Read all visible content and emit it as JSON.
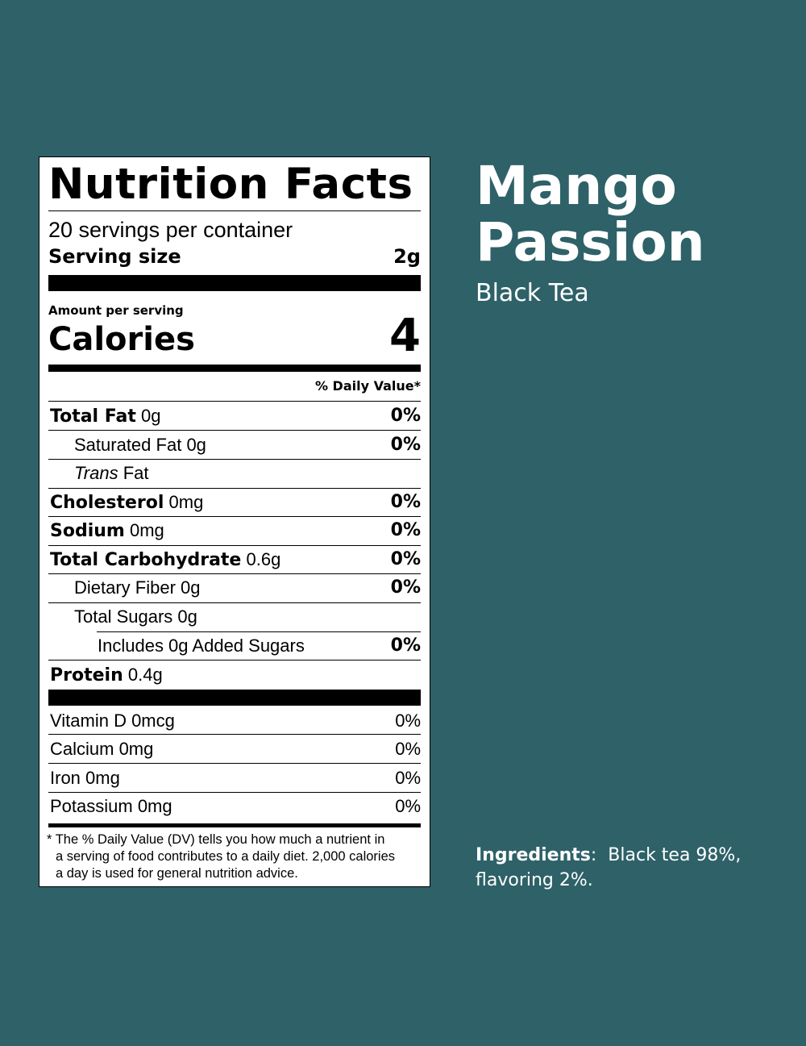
{
  "label": {
    "title": "Nutrition Facts",
    "servings": "20 servings per container",
    "serving_size_label": "Serving size",
    "serving_size_value": "2g",
    "amount_per_serving": "Amount per serving",
    "calories_label": "Calories",
    "calories_value": "4",
    "daily_value_header": "% Daily Value*",
    "nutrients": [
      {
        "name": "Total Fat",
        "amount": "0g",
        "pct": "0%"
      },
      {
        "name": "Saturated Fat",
        "amount": "0g",
        "pct": "0%"
      },
      {
        "name_italic": "Trans",
        "name_rest": "Fat"
      },
      {
        "name": "Cholesterol",
        "amount": "0mg",
        "pct": "0%"
      },
      {
        "name": "Sodium",
        "amount": "0mg",
        "pct": "0%"
      },
      {
        "name": "Total Carbohydrate",
        "amount": "0.6g",
        "pct": "0%"
      },
      {
        "name": "Dietary Fiber",
        "amount": "0g",
        "pct": "0%"
      },
      {
        "name": "Total Sugars",
        "amount": "0g"
      },
      {
        "name": "Includes 0g Added Sugars",
        "pct": "0%"
      },
      {
        "name": "Protein",
        "amount": "0.4g"
      }
    ],
    "vitamins": [
      {
        "text": "Vitamin D 0mcg",
        "pct": "0%"
      },
      {
        "text": "Calcium 0mg",
        "pct": "0%"
      },
      {
        "text": "Iron 0mg",
        "pct": "0%"
      },
      {
        "text": "Potassium 0mg",
        "pct": "0%"
      }
    ],
    "footnote": [
      "* The % Daily Value (DV) tells you how much a nutrient in",
      "a serving of food contributes to a daily diet. 2,000 calories",
      "a day is used for general nutrition advice."
    ]
  },
  "product": {
    "name_line1": "Mango",
    "name_line2": "Passion",
    "type": "Black Tea"
  },
  "ingredients": {
    "label": "Ingredients",
    "separator": ":",
    "text_line1": "Black tea 98%,",
    "text_line2": "flavoring 2%."
  },
  "colors": {
    "background": "#2e6168",
    "label_bg": "#ffffff",
    "text_light": "#ffffff"
  }
}
